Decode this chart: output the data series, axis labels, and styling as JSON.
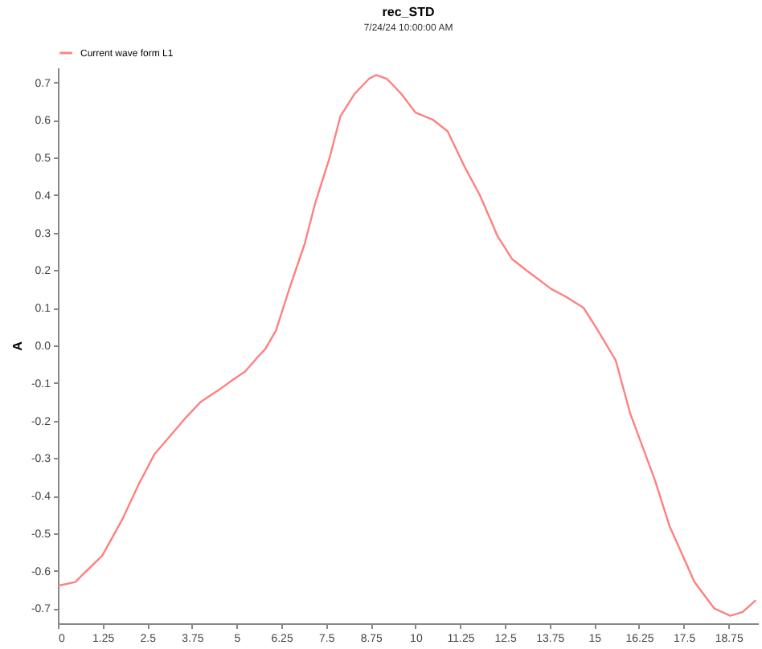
{
  "chart_data": {
    "type": "line",
    "title": "rec_STD",
    "subtitle": "7/24/24 10:00:00 AM",
    "ylabel": "A",
    "x": [
      0,
      0.49,
      0.7,
      1.24,
      1.82,
      2.26,
      2.7,
      3.15,
      3.6,
      4.0,
      4.48,
      4.92,
      5.23,
      5.6,
      5.8,
      6.1,
      6.47,
      6.9,
      7.2,
      7.6,
      7.9,
      8.3,
      8.7,
      8.9,
      9.2,
      9.6,
      10.0,
      10.5,
      10.9,
      11.35,
      11.8,
      12.3,
      12.7,
      13.1,
      13.8,
      14.2,
      14.7,
      15.1,
      15.6,
      16.0,
      16.7,
      17.1,
      17.8,
      18.35,
      18.8,
      19.15,
      19.5
    ],
    "series": [
      {
        "name": "Current wave form L1",
        "color": "#ff8080",
        "values": [
          -0.64,
          -0.63,
          -0.61,
          -0.56,
          -0.46,
          -0.37,
          -0.29,
          -0.24,
          -0.19,
          -0.15,
          -0.12,
          -0.09,
          -0.07,
          -0.03,
          -0.01,
          0.04,
          0.15,
          0.27,
          0.38,
          0.5,
          0.61,
          0.67,
          0.71,
          0.72,
          0.71,
          0.67,
          0.62,
          0.6,
          0.57,
          0.48,
          0.4,
          0.29,
          0.23,
          0.2,
          0.15,
          0.13,
          0.1,
          0.04,
          -0.04,
          -0.18,
          -0.36,
          -0.48,
          -0.63,
          -0.7,
          -0.72,
          -0.71,
          -0.68
        ]
      }
    ],
    "xlim": [
      0,
      19.6
    ],
    "xticks": [
      0,
      1.25,
      2.5,
      3.75,
      5,
      6.25,
      7.5,
      8.75,
      10,
      11.25,
      12.5,
      13.75,
      15,
      16.25,
      17.5,
      18.75
    ],
    "ylim": [
      -0.74,
      0.74
    ],
    "yticks": [
      -0.7,
      -0.6,
      -0.5,
      -0.4,
      -0.3,
      -0.2,
      -0.1,
      {
        "value": 0,
        "label": "0.0"
      },
      0.1,
      0.2,
      0.3,
      0.4,
      0.5,
      0.6,
      0.7
    ],
    "grid": false,
    "legend": "top left",
    "marker": "none",
    "line_style": "solid"
  }
}
